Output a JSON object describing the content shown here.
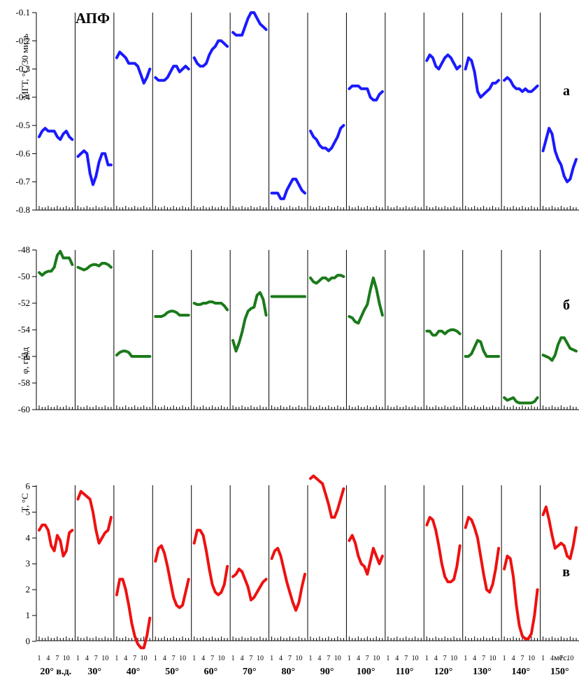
{
  "figure": {
    "title": "АПФ",
    "x_unit_label": "мес.",
    "month_tick_labels": [
      "1",
      "4",
      "7",
      "10"
    ],
    "longitude_labels": [
      "20° в.д.",
      "30°",
      "40°",
      "50°",
      "60°",
      "70°",
      "80°",
      "90°",
      "100°",
      "110°",
      "120°",
      "130°",
      "140°",
      "150°"
    ]
  },
  "chart_data": [
    {
      "type": "line",
      "panel_letter": "а",
      "ylabel": "МГТ, °С/30 миль",
      "ylim": [
        -0.8,
        -0.1
      ],
      "yticks": [
        "-0.1",
        "-0.2",
        "-0.3",
        "-0.4",
        "-0.5",
        "-0.6",
        "-0.7",
        "-0.8"
      ],
      "ytick_values": [
        -0.1,
        -0.2,
        -0.3,
        -0.4,
        -0.5,
        -0.6,
        -0.7,
        -0.8
      ],
      "color": "#1a1aff",
      "x": [
        "1",
        "2",
        "3",
        "4",
        "5",
        "6",
        "7",
        "8",
        "9",
        "10",
        "11",
        "12"
      ],
      "series": [
        {
          "lon": "20°",
          "values": [
            -0.54,
            -0.52,
            -0.51,
            -0.52,
            -0.52,
            -0.52,
            -0.54,
            -0.55,
            -0.53,
            -0.52,
            -0.54,
            -0.55
          ]
        },
        {
          "lon": "30°",
          "values": [
            -0.61,
            -0.6,
            -0.59,
            -0.6,
            -0.67,
            -0.71,
            -0.68,
            -0.63,
            -0.6,
            -0.6,
            -0.64,
            -0.64
          ]
        },
        {
          "lon": "40°",
          "values": [
            -0.26,
            -0.24,
            -0.25,
            -0.26,
            -0.28,
            -0.28,
            -0.28,
            -0.29,
            -0.32,
            -0.35,
            -0.33,
            -0.3
          ]
        },
        {
          "lon": "50°",
          "values": [
            -0.33,
            -0.34,
            -0.34,
            -0.34,
            -0.33,
            -0.31,
            -0.29,
            -0.29,
            -0.31,
            -0.3,
            -0.29,
            -0.3
          ]
        },
        {
          "lon": "60°",
          "values": [
            -0.26,
            -0.28,
            -0.29,
            -0.29,
            -0.28,
            -0.25,
            -0.23,
            -0.22,
            -0.2,
            -0.2,
            -0.21,
            -0.22
          ]
        },
        {
          "lon": "70°",
          "values": [
            -0.17,
            -0.18,
            -0.18,
            -0.18,
            -0.15,
            -0.12,
            -0.1,
            -0.1,
            -0.12,
            -0.14,
            -0.15,
            -0.16
          ]
        },
        {
          "lon": "80°",
          "values": [
            -0.74,
            -0.74,
            -0.74,
            -0.76,
            -0.76,
            -0.73,
            -0.71,
            -0.69,
            -0.69,
            -0.71,
            -0.73,
            -0.74
          ]
        },
        {
          "lon": "90°",
          "values": [
            -0.52,
            -0.54,
            -0.55,
            -0.57,
            -0.58,
            -0.58,
            -0.59,
            -0.58,
            -0.56,
            -0.54,
            -0.51,
            -0.5
          ]
        },
        {
          "lon": "100°",
          "values": [
            -0.37,
            -0.36,
            -0.36,
            -0.36,
            -0.37,
            -0.37,
            -0.37,
            -0.4,
            -0.41,
            -0.41,
            -0.39,
            -0.38
          ]
        },
        {
          "lon": "110°",
          "values": null
        },
        {
          "lon": "120°",
          "values": [
            -0.27,
            -0.25,
            -0.26,
            -0.29,
            -0.3,
            -0.28,
            -0.26,
            -0.25,
            -0.26,
            -0.28,
            -0.3,
            -0.29
          ]
        },
        {
          "lon": "130°",
          "values": [
            -0.3,
            -0.26,
            -0.27,
            -0.31,
            -0.38,
            -0.4,
            -0.39,
            -0.38,
            -0.37,
            -0.35,
            -0.35,
            -0.34
          ]
        },
        {
          "lon": "140°",
          "values": [
            -0.34,
            -0.33,
            -0.34,
            -0.36,
            -0.37,
            -0.37,
            -0.38,
            -0.37,
            -0.38,
            -0.38,
            -0.37,
            -0.36
          ]
        },
        {
          "lon": "150°",
          "values": [
            -0.59,
            -0.55,
            -0.51,
            -0.53,
            -0.59,
            -0.62,
            -0.64,
            -0.68,
            -0.7,
            -0.69,
            -0.65,
            -0.62
          ]
        }
      ]
    },
    {
      "type": "line",
      "panel_letter": "б",
      "ylabel": "φ, град",
      "ylim": [
        -60,
        -48
      ],
      "yticks": [
        "-48",
        "-50",
        "-52",
        "-54",
        "-56",
        "-58",
        "-60"
      ],
      "ytick_values": [
        -48,
        -50,
        -52,
        -54,
        -56,
        -58,
        -60
      ],
      "color": "#1a7a1a",
      "x": [
        "1",
        "2",
        "3",
        "4",
        "5",
        "6",
        "7",
        "8",
        "9",
        "10",
        "11",
        "12"
      ],
      "series": [
        {
          "lon": "20°",
          "values": [
            -49.7,
            -49.9,
            -49.7,
            -49.6,
            -49.6,
            -49.3,
            -48.4,
            -48.1,
            -48.6,
            -48.6,
            -48.6,
            -49.1
          ]
        },
        {
          "lon": "30°",
          "values": [
            -49.3,
            -49.4,
            -49.5,
            -49.4,
            -49.2,
            -49.1,
            -49.1,
            -49.2,
            -49.0,
            -49.0,
            -49.1,
            -49.3
          ]
        },
        {
          "lon": "40°",
          "values": [
            -55.9,
            -55.7,
            -55.6,
            -55.6,
            -55.7,
            -56.0,
            -56.0,
            -56.0,
            -56.0,
            -56.0,
            -56.0,
            -56.0
          ]
        },
        {
          "lon": "50°",
          "values": [
            -53.0,
            -53.0,
            -53.0,
            -52.9,
            -52.7,
            -52.6,
            -52.6,
            -52.7,
            -52.9,
            -52.9,
            -52.9,
            -52.9
          ]
        },
        {
          "lon": "60°",
          "values": [
            -52.0,
            -52.1,
            -52.1,
            -52.0,
            -52.0,
            -51.9,
            -51.9,
            -52.0,
            -52.0,
            -52.0,
            -52.2,
            -52.5
          ]
        },
        {
          "lon": "70°",
          "values": [
            -54.8,
            -55.6,
            -55.0,
            -54.2,
            -53.2,
            -52.6,
            -52.4,
            -52.3,
            -51.4,
            -51.2,
            -51.7,
            -52.9
          ]
        },
        {
          "lon": "80°",
          "values": [
            -51.5,
            -51.5,
            -51.5,
            -51.5,
            -51.5,
            -51.5,
            -51.5,
            -51.5,
            -51.5,
            -51.5,
            -51.5,
            -51.5
          ]
        },
        {
          "lon": "90°",
          "values": [
            -50.1,
            -50.4,
            -50.5,
            -50.3,
            -50.1,
            -50.1,
            -50.3,
            -50.1,
            -50.1,
            -49.9,
            -49.9,
            -50.0
          ]
        },
        {
          "lon": "100°",
          "values": [
            -53.0,
            -53.1,
            -53.4,
            -53.5,
            -53.0,
            -52.5,
            -52.1,
            -51.0,
            -50.1,
            -50.9,
            -52.0,
            -52.9
          ]
        },
        {
          "lon": "110°",
          "values": null
        },
        {
          "lon": "120°",
          "values": [
            -54.1,
            -54.1,
            -54.4,
            -54.4,
            -54.1,
            -54.1,
            -54.3,
            -54.1,
            -54.0,
            -54.0,
            -54.1,
            -54.3
          ]
        },
        {
          "lon": "130°",
          "values": [
            -56.0,
            -56.0,
            -55.8,
            -55.3,
            -54.8,
            -54.9,
            -55.6,
            -56.0,
            -56.0,
            -56.0,
            -56.0,
            -56.0
          ]
        },
        {
          "lon": "140°",
          "values": [
            -59.1,
            -59.3,
            -59.2,
            -59.1,
            -59.4,
            -59.5,
            -59.5,
            -59.5,
            -59.5,
            -59.5,
            -59.4,
            -59.1
          ]
        },
        {
          "lon": "150°",
          "values": [
            -55.9,
            -56.0,
            -56.1,
            -56.3,
            -55.9,
            -55.1,
            -54.6,
            -54.6,
            -55.0,
            -55.4,
            -55.5,
            -55.6
          ]
        }
      ]
    },
    {
      "type": "line",
      "panel_letter": "в",
      "ylabel": "T, °C",
      "ylim": [
        -0.3,
        6.5
      ],
      "yticks": [
        "6",
        "5",
        "4",
        "3",
        "2",
        "1",
        "0"
      ],
      "ytick_values": [
        6,
        5,
        4,
        3,
        2,
        1,
        0
      ],
      "color": "#ee1111",
      "x": [
        "1",
        "2",
        "3",
        "4",
        "5",
        "6",
        "7",
        "8",
        "9",
        "10",
        "11",
        "12"
      ],
      "series": [
        {
          "lon": "20°",
          "values": [
            4.3,
            4.5,
            4.5,
            4.3,
            3.7,
            3.5,
            4.1,
            3.9,
            3.3,
            3.5,
            4.2,
            4.3
          ]
        },
        {
          "lon": "30°",
          "values": [
            5.5,
            5.8,
            5.7,
            5.6,
            5.5,
            5.0,
            4.3,
            3.8,
            4.0,
            4.2,
            4.3,
            4.8
          ]
        },
        {
          "lon": "40°",
          "values": [
            1.8,
            2.4,
            2.4,
            2.0,
            1.4,
            0.7,
            0.2,
            -0.1,
            -0.25,
            -0.25,
            0.2,
            0.9
          ]
        },
        {
          "lon": "50°",
          "values": [
            3.1,
            3.6,
            3.7,
            3.4,
            2.9,
            2.3,
            1.7,
            1.4,
            1.3,
            1.4,
            1.9,
            2.4
          ]
        },
        {
          "lon": "60°",
          "values": [
            3.8,
            4.3,
            4.3,
            4.1,
            3.5,
            2.8,
            2.2,
            1.9,
            1.8,
            1.9,
            2.2,
            2.9
          ]
        },
        {
          "lon": "70°",
          "values": [
            2.5,
            2.6,
            2.8,
            2.7,
            2.4,
            2.1,
            1.6,
            1.7,
            1.9,
            2.1,
            2.3,
            2.4
          ]
        },
        {
          "lon": "80°",
          "values": [
            3.2,
            3.5,
            3.6,
            3.3,
            2.8,
            2.3,
            1.9,
            1.5,
            1.2,
            1.5,
            2.1,
            2.6
          ]
        },
        {
          "lon": "90°",
          "values": [
            6.3,
            6.4,
            6.3,
            6.2,
            6.1,
            5.7,
            5.3,
            4.8,
            4.8,
            5.1,
            5.5,
            5.9
          ]
        },
        {
          "lon": "100°",
          "values": [
            3.9,
            4.1,
            3.8,
            3.3,
            3.0,
            2.9,
            2.6,
            3.1,
            3.6,
            3.3,
            3.0,
            3.3
          ]
        },
        {
          "lon": "110°",
          "values": null
        },
        {
          "lon": "120°",
          "values": [
            4.5,
            4.8,
            4.7,
            4.3,
            3.7,
            3.0,
            2.5,
            2.3,
            2.3,
            2.4,
            2.9,
            3.7
          ]
        },
        {
          "lon": "130°",
          "values": [
            4.4,
            4.8,
            4.7,
            4.4,
            4.0,
            3.3,
            2.6,
            2.0,
            1.9,
            2.2,
            2.8,
            3.6
          ]
        },
        {
          "lon": "140°",
          "values": [
            2.8,
            3.3,
            3.2,
            2.5,
            1.4,
            0.6,
            0.2,
            0.1,
            0.1,
            0.3,
            1.0,
            2.0
          ]
        },
        {
          "lon": "150°",
          "values": [
            4.9,
            5.2,
            4.7,
            4.1,
            3.6,
            3.7,
            3.8,
            3.7,
            3.3,
            3.2,
            3.7,
            4.4
          ]
        }
      ]
    }
  ]
}
